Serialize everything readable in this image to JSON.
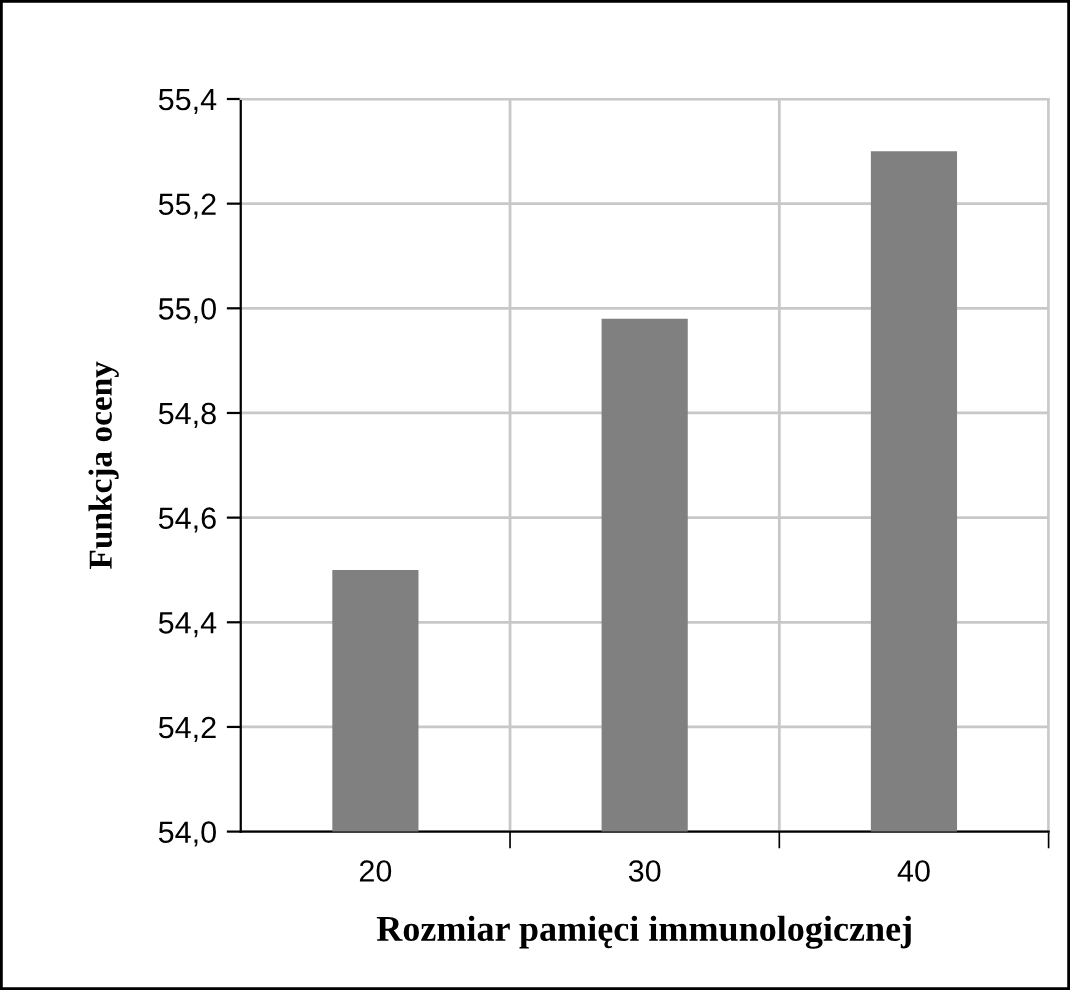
{
  "chart_data": {
    "type": "bar",
    "xlabel": "Rozmiar pamięci immunologicznej",
    "ylabel": "Funkcja oceny",
    "categories": [
      "20",
      "30",
      "40"
    ],
    "values": [
      54.5,
      54.98,
      55.3
    ],
    "color": "#808080",
    "ylim": [
      54.0,
      55.4
    ],
    "yticks": [
      {
        "value": 54.0,
        "label": "54,0"
      },
      {
        "value": 54.2,
        "label": "54,2"
      },
      {
        "value": 54.4,
        "label": "54,4"
      },
      {
        "value": 54.6,
        "label": "54,6"
      },
      {
        "value": 54.8,
        "label": "54,8"
      },
      {
        "value": 55.0,
        "label": "55,0"
      },
      {
        "value": 55.2,
        "label": "55,2"
      },
      {
        "value": 55.4,
        "label": "55,4"
      }
    ],
    "grid": true,
    "legend": false
  }
}
